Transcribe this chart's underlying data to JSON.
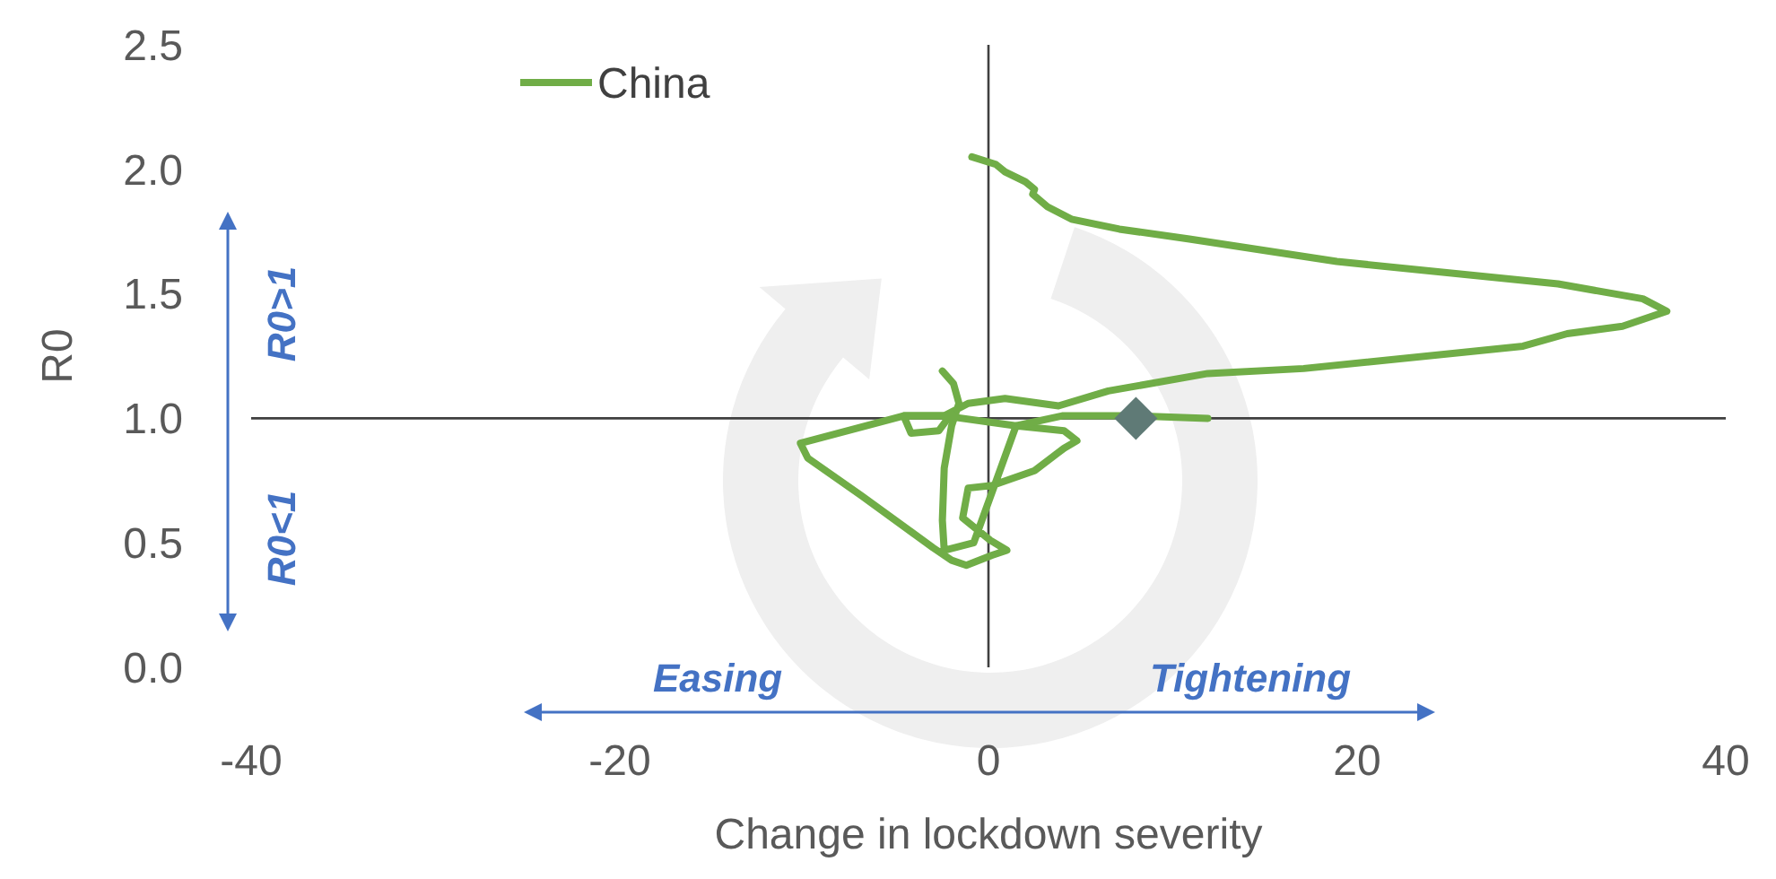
{
  "chart_data": {
    "type": "line",
    "xlabel": "Change in lockdown severity",
    "ylabel": "R0",
    "xlim": [
      -40,
      40
    ],
    "xticks": [
      -40,
      -20,
      0,
      20,
      40
    ],
    "ylim": [
      0,
      2.5
    ],
    "yticks": [
      {
        "value": 0,
        "label": "0.0"
      },
      {
        "value": 0.5,
        "label": "0.5"
      },
      {
        "value": 1,
        "label": "1.0"
      },
      {
        "value": 1.5,
        "label": "1.5"
      },
      {
        "value": 2,
        "label": "2.0"
      },
      {
        "value": 2.5,
        "label": "2.5"
      }
    ],
    "grid": false,
    "legend": "top left",
    "marker": "none",
    "line_style": "solid",
    "series": [
      {
        "name": "China",
        "color": "#70ad47",
        "x": [
          -0.9,
          0.4,
          0.9,
          2.0,
          2.5,
          2.4,
          3.2,
          4.5,
          7.1,
          10.9,
          18.9,
          30.9,
          35.5,
          36.8,
          34.4,
          31.4,
          29.0,
          17.1,
          11.9,
          6.5,
          3.8,
          0.9,
          -1.1,
          -2.4,
          -4.6,
          -10.2,
          -9.8,
          -6.9,
          -3.0,
          -2.0,
          -1.2,
          0.2,
          1.0,
          0.1,
          -1.4,
          -1.1,
          0.2,
          2.5,
          4.1,
          4.8,
          4.1,
          1.5,
          -0.8,
          -2.4,
          -2.5,
          -2.4,
          -2.0,
          -1.6,
          -1.9,
          -2.5
        ],
        "values": [
          2.05,
          2.02,
          1.99,
          1.95,
          1.92,
          1.9,
          1.85,
          1.8,
          1.76,
          1.72,
          1.63,
          1.54,
          1.48,
          1.43,
          1.37,
          1.34,
          1.29,
          1.2,
          1.18,
          1.11,
          1.05,
          1.08,
          1.06,
          1.01,
          1.01,
          0.9,
          0.84,
          0.69,
          0.48,
          0.43,
          0.41,
          0.45,
          0.47,
          0.51,
          0.6,
          0.72,
          0.73,
          0.79,
          0.88,
          0.91,
          0.95,
          0.97,
          0.5,
          0.47,
          0.59,
          0.8,
          0.97,
          1.06,
          1.14,
          1.19
        ]
      },
      {
        "type": "line",
        "color": "#70ad47",
        "x": [
          -2.0,
          -2.7,
          -4.2,
          -4.6,
          -2.4,
          1.5,
          4.0,
          8.0,
          11.9
        ],
        "values": [
          1.02,
          0.95,
          0.94,
          1.01,
          1.01,
          0.97,
          1.01,
          1.01,
          1.0
        ]
      },
      {
        "type": "scatter",
        "marker": "diamond",
        "color": "#5f7a76",
        "x": [
          8.0
        ],
        "values": [
          1.0
        ]
      }
    ],
    "ref_lines": [
      {
        "axis": "x",
        "value": 0,
        "color": "#404040"
      },
      {
        "axis": "y",
        "value": 1,
        "color": "#404040"
      }
    ],
    "annotations": [
      "R0>1",
      "R0<1",
      "Easing",
      "Tightening"
    ]
  }
}
